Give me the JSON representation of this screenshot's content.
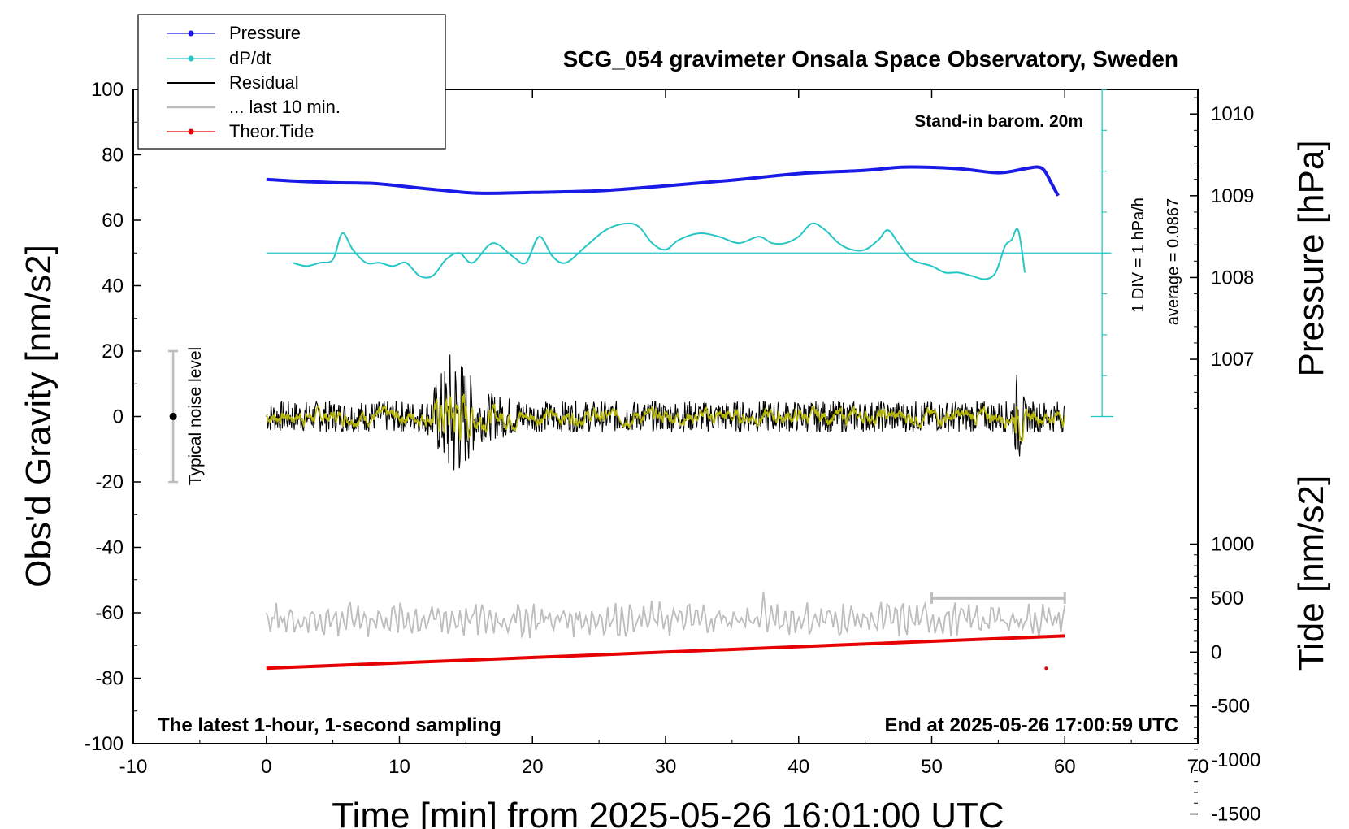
{
  "chart_data": {
    "type": "line",
    "title": "SCG_054 gravimeter Onsala Space Observatory, Sweden",
    "xlabel": "Time [min] from 2025-05-26 16:01:00 UTC",
    "ylabel": "Obs'd Gravity [nm/s2]",
    "ylabel_right_top": "Pressure [hPa]",
    "ylabel_right_bottom": "Tide [nm/s2]",
    "xlim": [
      -10,
      70
    ],
    "ylim": [
      -100,
      100
    ],
    "pressure_lim": [
      1006,
      1011
    ],
    "tide_lim": [
      -1500,
      1500
    ],
    "x_ticks": [
      "-10",
      "0",
      "10",
      "20",
      "30",
      "40",
      "50",
      "60",
      "70"
    ],
    "y_ticks": [
      "100",
      "80",
      "60",
      "40",
      "20",
      "0",
      "-20",
      "-40",
      "-60",
      "-80",
      "-100"
    ],
    "pressure_ticks": [
      "1010",
      "1009",
      "1008",
      "1007"
    ],
    "tide_ticks": [
      "1000",
      "500",
      "0",
      "-500",
      "-1000",
      "-1500"
    ],
    "annotations": {
      "barometer": "Stand-in barom. 20m",
      "scale_div": "1 DIV = 1 hPa/h",
      "average": "average = 0.0867",
      "noise": "Typical noise level",
      "latest": "The latest 1-hour, 1-second sampling",
      "end": "End at 2025-05-26 17:00:59 UTC"
    },
    "legend": [
      {
        "label": "Pressure",
        "color": "#1a1ae6",
        "marker": true
      },
      {
        "label": "dP/dt",
        "color": "#26c6c6",
        "marker": true
      },
      {
        "label": "Residual",
        "color": "#000000",
        "marker": false
      },
      {
        "label": "... last 10 min.",
        "color": "#bdbdbd",
        "marker": false
      },
      {
        "label": "Theor.Tide",
        "color": "#e60000",
        "marker": true
      }
    ],
    "series": [
      {
        "name": "Pressure",
        "units": "hPa",
        "x": [
          0,
          2,
          5,
          8,
          10,
          13,
          16,
          20,
          25,
          30,
          35,
          40,
          45,
          48,
          52,
          55,
          57,
          58,
          58.5,
          59,
          59.5
        ],
        "values": [
          1009.2,
          1009.18,
          1009.16,
          1009.15,
          1009.12,
          1009.07,
          1009.03,
          1009.04,
          1009.06,
          1009.12,
          1009.19,
          1009.27,
          1009.31,
          1009.35,
          1009.33,
          1009.28,
          1009.33,
          1009.35,
          1009.3,
          1009.15,
          1009.0
        ]
      },
      {
        "name": "dP/dt",
        "units": "gravity axis",
        "x": [
          2,
          3,
          4,
          5,
          5.7,
          6.5,
          7.5,
          8.5,
          9.5,
          10.5,
          11.5,
          12.5,
          13.5,
          14.5,
          15.5,
          17,
          18.5,
          19.5,
          20.5,
          21.5,
          22.5,
          24,
          25.5,
          27,
          28,
          29,
          30,
          31,
          32.5,
          34,
          35.5,
          37,
          38,
          39,
          40,
          41,
          42,
          43,
          44,
          45,
          46,
          46.7,
          47.5,
          48.5,
          50,
          51,
          52,
          53,
          54,
          54.8,
          55.5,
          56,
          56.5,
          57
        ],
        "values": [
          47,
          46,
          47,
          48,
          56,
          51,
          47,
          47,
          46,
          47,
          43,
          43,
          48,
          50,
          47,
          53,
          49,
          47,
          55,
          49,
          47,
          52,
          57,
          59,
          58,
          53,
          51,
          54,
          56,
          55,
          53,
          55,
          53,
          53,
          55,
          59,
          57,
          53,
          51,
          51,
          54,
          57,
          53,
          48,
          46,
          44,
          44,
          43,
          42,
          44,
          52,
          54,
          57,
          44
        ]
      },
      {
        "name": "Residual",
        "x": [
          0,
          60
        ],
        "values": [
          0,
          0
        ],
        "envelope": [
          [
            0,
            3
          ],
          [
            12,
            3
          ],
          [
            13,
            8
          ],
          [
            14,
            14
          ],
          [
            15,
            10
          ],
          [
            16,
            5
          ],
          [
            18,
            4
          ],
          [
            20,
            3
          ],
          [
            56,
            3
          ],
          [
            56.5,
            10
          ],
          [
            57,
            3
          ],
          [
            60,
            3
          ]
        ]
      },
      {
        "name": "... last 10 min.",
        "x": [
          0,
          60
        ],
        "values": [
          -62,
          -62
        ],
        "envelope": [
          [
            0,
            4
          ],
          [
            37,
            4
          ],
          [
            37.5,
            12
          ],
          [
            38,
            4
          ],
          [
            60,
            4
          ]
        ]
      },
      {
        "name": "Theor.Tide",
        "units": "nm/s2",
        "x": [
          0,
          60
        ],
        "values": [
          -150,
          150
        ]
      }
    ],
    "noise_bar": {
      "x": -7,
      "y_min": -20,
      "y_max": 20,
      "center": 0
    },
    "scale_bar": {
      "x_start": 50,
      "x_end": 60,
      "tide_level": 500
    }
  }
}
